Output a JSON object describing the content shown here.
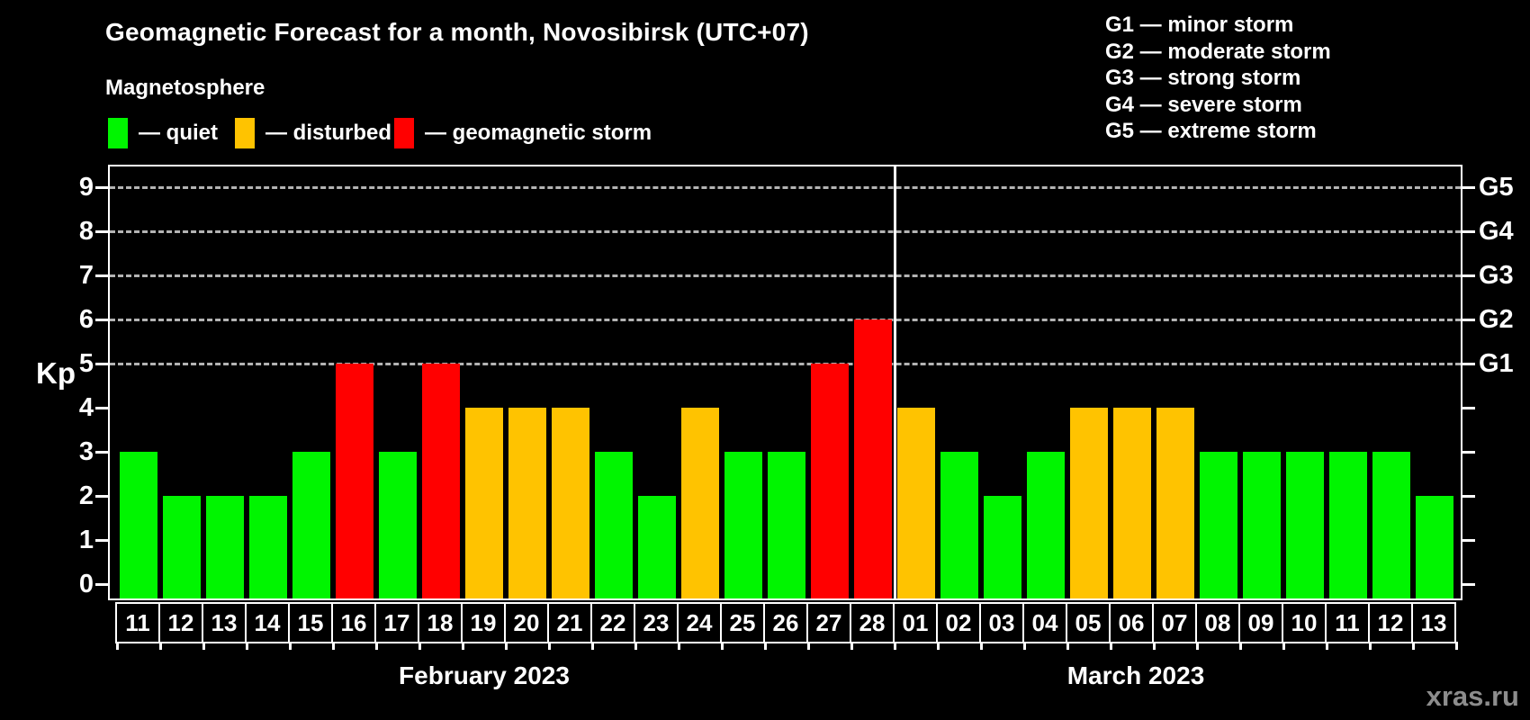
{
  "header": {
    "title": "Geomagnetic Forecast for a month, Novosibirsk (UTC+07)",
    "subtitle": "Magnetosphere"
  },
  "legend": {
    "items": [
      {
        "name": "quiet",
        "label": "— quiet",
        "color": "#00f500"
      },
      {
        "name": "disturbed",
        "label": "— disturbed",
        "color": "#ffc300"
      },
      {
        "name": "storm",
        "label": "— geomagnetic storm",
        "color": "#ff0000"
      }
    ]
  },
  "g_legend": {
    "items": [
      {
        "text": "G1 — minor storm"
      },
      {
        "text": "G2 — moderate storm"
      },
      {
        "text": "G3 — strong storm"
      },
      {
        "text": "G4 — severe storm"
      },
      {
        "text": "G5 — extreme storm"
      }
    ]
  },
  "watermark": "xras.ru",
  "chart_data": {
    "type": "bar",
    "title": "Geomagnetic Forecast for a month, Novosibirsk (UTC+07)",
    "ylabel": "Kp",
    "ylim": [
      0,
      9.4
    ],
    "yticks": [
      0,
      1,
      2,
      3,
      4,
      5,
      6,
      7,
      8,
      9
    ],
    "gridlines_at": [
      5,
      6,
      7,
      8,
      9
    ],
    "grid": "horizontal dashed gray lines at storm levels G1–G5 only",
    "legend_position": "top-left (bar colors) and top-right (G scale)",
    "right_axis": [
      {
        "label": "G1",
        "kp": 5
      },
      {
        "label": "G2",
        "kp": 6
      },
      {
        "label": "G3",
        "kp": 7
      },
      {
        "label": "G4",
        "kp": 8
      },
      {
        "label": "G5",
        "kp": 9
      }
    ],
    "status_colors": {
      "quiet": "#00f500",
      "disturbed": "#ffc300",
      "storm": "#ff0000"
    },
    "months": [
      {
        "name": "February 2023",
        "days": [
          {
            "day": "11",
            "kp": 3,
            "status": "quiet"
          },
          {
            "day": "12",
            "kp": 2,
            "status": "quiet"
          },
          {
            "day": "13",
            "kp": 2,
            "status": "quiet"
          },
          {
            "day": "14",
            "kp": 2,
            "status": "quiet"
          },
          {
            "day": "15",
            "kp": 3,
            "status": "quiet"
          },
          {
            "day": "16",
            "kp": 5,
            "status": "storm"
          },
          {
            "day": "17",
            "kp": 3,
            "status": "quiet"
          },
          {
            "day": "18",
            "kp": 5,
            "status": "storm"
          },
          {
            "day": "19",
            "kp": 4,
            "status": "disturbed"
          },
          {
            "day": "20",
            "kp": 4,
            "status": "disturbed"
          },
          {
            "day": "21",
            "kp": 4,
            "status": "disturbed"
          },
          {
            "day": "22",
            "kp": 3,
            "status": "quiet"
          },
          {
            "day": "23",
            "kp": 2,
            "status": "quiet"
          },
          {
            "day": "24",
            "kp": 4,
            "status": "disturbed"
          },
          {
            "day": "25",
            "kp": 3,
            "status": "quiet"
          },
          {
            "day": "26",
            "kp": 3,
            "status": "quiet"
          },
          {
            "day": "27",
            "kp": 5,
            "status": "storm"
          },
          {
            "day": "28",
            "kp": 6,
            "status": "storm"
          }
        ]
      },
      {
        "name": "March 2023",
        "days": [
          {
            "day": "01",
            "kp": 4,
            "status": "disturbed"
          },
          {
            "day": "02",
            "kp": 3,
            "status": "quiet"
          },
          {
            "day": "03",
            "kp": 2,
            "status": "quiet"
          },
          {
            "day": "04",
            "kp": 3,
            "status": "quiet"
          },
          {
            "day": "05",
            "kp": 4,
            "status": "disturbed"
          },
          {
            "day": "06",
            "kp": 4,
            "status": "disturbed"
          },
          {
            "day": "07",
            "kp": 4,
            "status": "disturbed"
          },
          {
            "day": "08",
            "kp": 3,
            "status": "quiet"
          },
          {
            "day": "09",
            "kp": 3,
            "status": "quiet"
          },
          {
            "day": "10",
            "kp": 3,
            "status": "quiet"
          },
          {
            "day": "11",
            "kp": 3,
            "status": "quiet"
          },
          {
            "day": "12",
            "kp": 3,
            "status": "quiet"
          },
          {
            "day": "13",
            "kp": 2,
            "status": "quiet"
          }
        ]
      }
    ]
  }
}
